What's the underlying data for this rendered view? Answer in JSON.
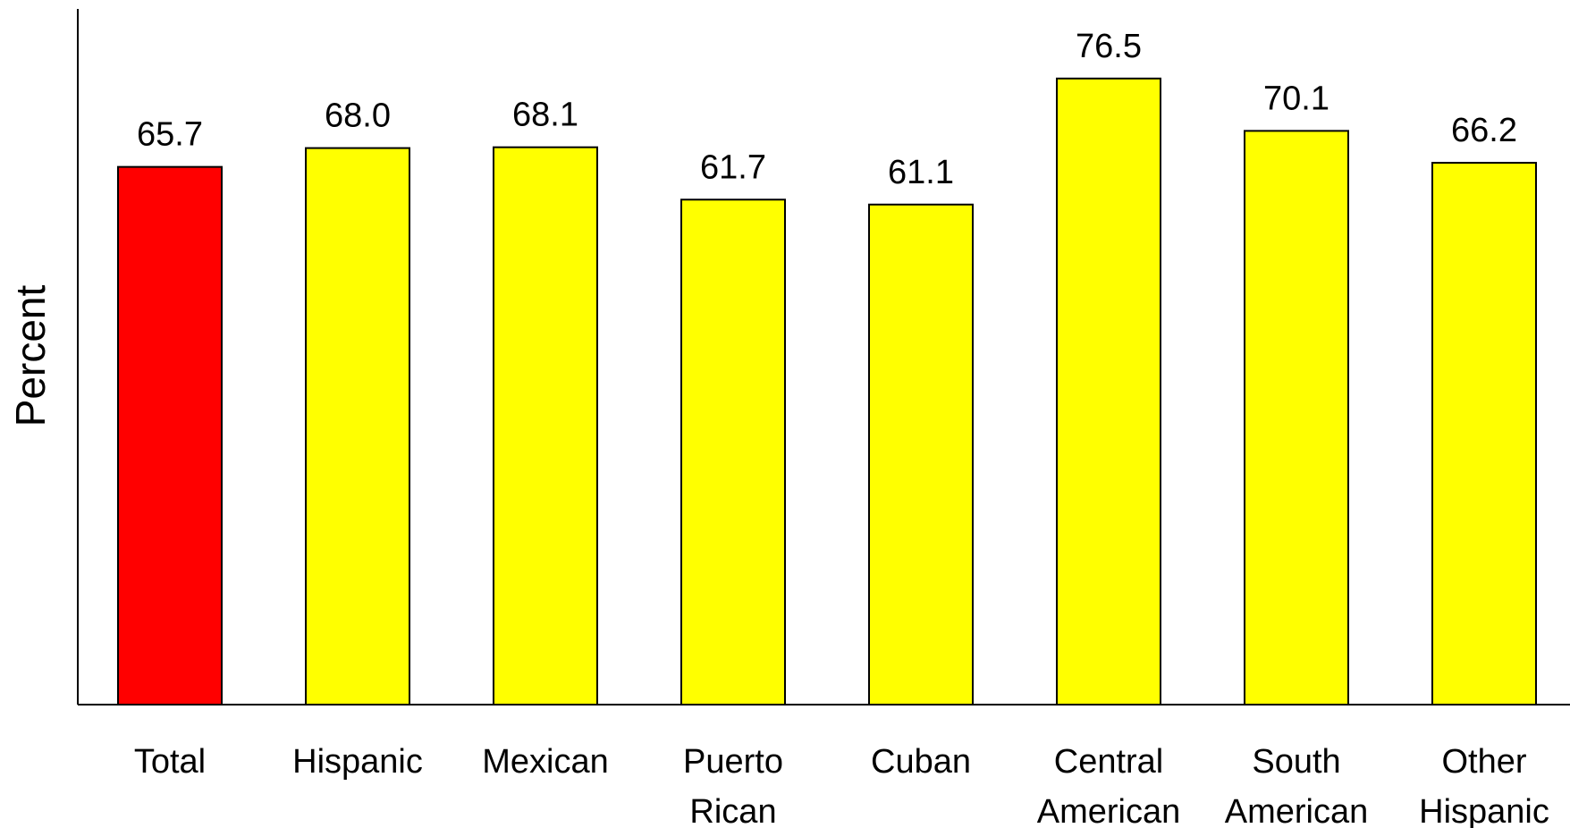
{
  "chart_data": {
    "type": "bar",
    "title": "",
    "xlabel": "",
    "ylabel": "Percent",
    "ylim": [
      0,
      85
    ],
    "grid": false,
    "legend": "none",
    "categories": [
      [
        "Total"
      ],
      [
        "Hispanic"
      ],
      [
        "Mexican"
      ],
      [
        "Puerto",
        "Rican"
      ],
      [
        "Cuban"
      ],
      [
        "Central",
        "American"
      ],
      [
        "South",
        "American"
      ],
      [
        "Other",
        "Hispanic"
      ]
    ],
    "values": [
      65.7,
      68.0,
      68.1,
      61.7,
      61.1,
      76.5,
      70.1,
      66.2
    ],
    "value_labels": [
      "65.7",
      "68.0",
      "68.1",
      "61.7",
      "61.1",
      "76.5",
      "70.1",
      "66.2"
    ],
    "colors": {
      "highlight": "#ff0000",
      "default": "#ffff00",
      "outline": "#000000",
      "axis": "#000000"
    },
    "highlight_index": 0
  }
}
